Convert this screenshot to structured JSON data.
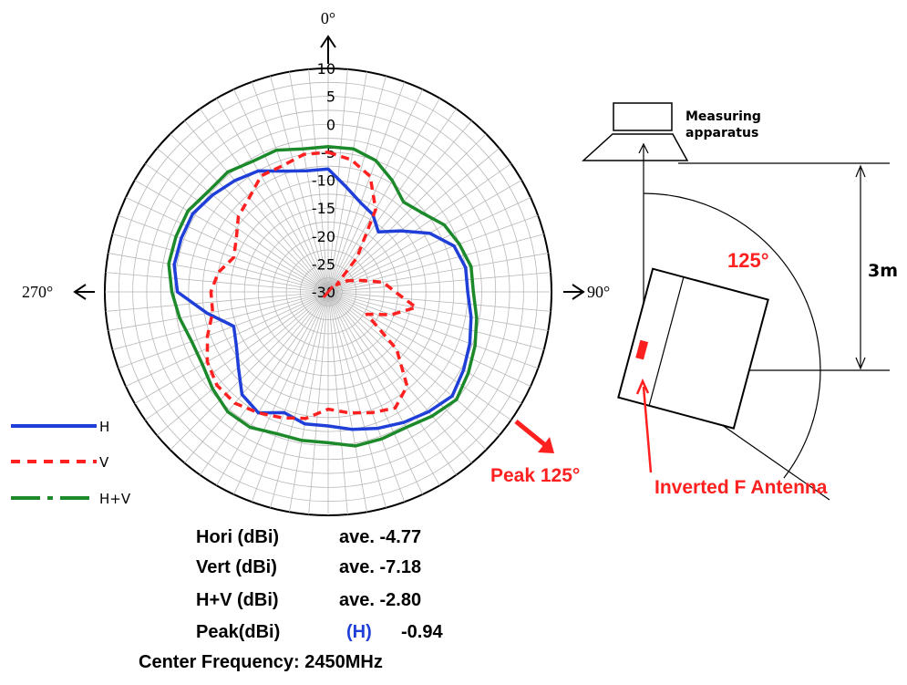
{
  "chart_data": {
    "type": "polar-line",
    "radial_ticks": [
      "10",
      "5",
      "0",
      "-5",
      "-10",
      "-15",
      "-20",
      "-25",
      "-30"
    ],
    "radial_range": [
      -30,
      10
    ],
    "angle_labels": {
      "top": "0°",
      "right": "90°",
      "left": "270°"
    },
    "grid": true,
    "legend": {
      "position": "bottom-left",
      "entries": [
        {
          "label": "H",
          "color": "#1f3fd8",
          "dash": "solid"
        },
        {
          "label": "V",
          "color": "#ff2020",
          "dash": "dashed"
        },
        {
          "label": "H+V",
          "color": "#1c8a2a",
          "dash": "dash-dot"
        }
      ]
    },
    "angle_units": "degrees",
    "series": [
      {
        "name": "H",
        "color": "#1f3fd8",
        "values": [
          {
            "angle": 0,
            "r": -8
          },
          {
            "angle": 10,
            "r": -11
          },
          {
            "angle": 20,
            "r": -13
          },
          {
            "angle": 30,
            "r": -14
          },
          {
            "angle": 40,
            "r": -16
          },
          {
            "angle": 50,
            "r": -13
          },
          {
            "angle": 60,
            "r": -9
          },
          {
            "angle": 70,
            "r": -6
          },
          {
            "angle": 80,
            "r": -5
          },
          {
            "angle": 90,
            "r": -5
          },
          {
            "angle": 100,
            "r": -4
          },
          {
            "angle": 110,
            "r": -3
          },
          {
            "angle": 120,
            "r": -2
          },
          {
            "angle": 130,
            "r": -1
          },
          {
            "angle": 140,
            "r": -2
          },
          {
            "angle": 150,
            "r": -3
          },
          {
            "angle": 160,
            "r": -4
          },
          {
            "angle": 170,
            "r": -5
          },
          {
            "angle": 180,
            "r": -6
          },
          {
            "angle": 190,
            "r": -6
          },
          {
            "angle": 200,
            "r": -7
          },
          {
            "angle": 210,
            "r": -5
          },
          {
            "angle": 220,
            "r": -6
          },
          {
            "angle": 230,
            "r": -9
          },
          {
            "angle": 240,
            "r": -11
          },
          {
            "angle": 250,
            "r": -12
          },
          {
            "angle": 260,
            "r": -8
          },
          {
            "angle": 270,
            "r": -3
          },
          {
            "angle": 280,
            "r": -2
          },
          {
            "angle": 290,
            "r": -2
          },
          {
            "angle": 300,
            "r": -2
          },
          {
            "angle": 310,
            "r": -3
          },
          {
            "angle": 320,
            "r": -4
          },
          {
            "angle": 330,
            "r": -5
          },
          {
            "angle": 340,
            "r": -7
          },
          {
            "angle": 350,
            "r": -8
          }
        ]
      },
      {
        "name": "V",
        "color": "#ff2020",
        "values": [
          {
            "angle": 0,
            "r": -5
          },
          {
            "angle": 10,
            "r": -6
          },
          {
            "angle": 20,
            "r": -8
          },
          {
            "angle": 30,
            "r": -13
          },
          {
            "angle": 40,
            "r": -22
          },
          {
            "angle": 50,
            "r": -28
          },
          {
            "angle": 60,
            "r": -26
          },
          {
            "angle": 70,
            "r": -24
          },
          {
            "angle": 80,
            "r": -20
          },
          {
            "angle": 90,
            "r": -18
          },
          {
            "angle": 100,
            "r": -14
          },
          {
            "angle": 110,
            "r": -18
          },
          {
            "angle": 120,
            "r": -22
          },
          {
            "angle": 130,
            "r": -14
          },
          {
            "angle": 140,
            "r": -8
          },
          {
            "angle": 150,
            "r": -6
          },
          {
            "angle": 160,
            "r": -7
          },
          {
            "angle": 170,
            "r": -8
          },
          {
            "angle": 180,
            "r": -9
          },
          {
            "angle": 190,
            "r": -7
          },
          {
            "angle": 200,
            "r": -6
          },
          {
            "angle": 210,
            "r": -5
          },
          {
            "angle": 220,
            "r": -4
          },
          {
            "angle": 230,
            "r": -4
          },
          {
            "angle": 240,
            "r": -5
          },
          {
            "angle": 250,
            "r": -7
          },
          {
            "angle": 260,
            "r": -9
          },
          {
            "angle": 270,
            "r": -9
          },
          {
            "angle": 280,
            "r": -10
          },
          {
            "angle": 290,
            "r": -12
          },
          {
            "angle": 300,
            "r": -11
          },
          {
            "angle": 310,
            "r": -9
          },
          {
            "angle": 320,
            "r": -8
          },
          {
            "angle": 330,
            "r": -6
          },
          {
            "angle": 340,
            "r": -6
          },
          {
            "angle": 350,
            "r": -5
          }
        ]
      },
      {
        "name": "H+V",
        "color": "#1c8a2a",
        "values": [
          {
            "angle": 0,
            "r": -4
          },
          {
            "angle": 10,
            "r": -4
          },
          {
            "angle": 20,
            "r": -5
          },
          {
            "angle": 30,
            "r": -7
          },
          {
            "angle": 40,
            "r": -9
          },
          {
            "angle": 50,
            "r": -8
          },
          {
            "angle": 60,
            "r": -6
          },
          {
            "angle": 70,
            "r": -5
          },
          {
            "angle": 80,
            "r": -4
          },
          {
            "angle": 90,
            "r": -4
          },
          {
            "angle": 100,
            "r": -3
          },
          {
            "angle": 110,
            "r": -2
          },
          {
            "angle": 120,
            "r": -1
          },
          {
            "angle": 130,
            "r": 0
          },
          {
            "angle": 140,
            "r": -1
          },
          {
            "angle": 150,
            "r": -2
          },
          {
            "angle": 160,
            "r": -2
          },
          {
            "angle": 170,
            "r": -2
          },
          {
            "angle": 180,
            "r": -3
          },
          {
            "angle": 190,
            "r": -3
          },
          {
            "angle": 200,
            "r": -3
          },
          {
            "angle": 210,
            "r": -2
          },
          {
            "angle": 220,
            "r": -2
          },
          {
            "angle": 230,
            "r": -3
          },
          {
            "angle": 240,
            "r": -4
          },
          {
            "angle": 250,
            "r": -4
          },
          {
            "angle": 260,
            "r": -3
          },
          {
            "angle": 270,
            "r": -2
          },
          {
            "angle": 280,
            "r": -1
          },
          {
            "angle": 290,
            "r": -1
          },
          {
            "angle": 300,
            "r": -1
          },
          {
            "angle": 310,
            "r": -2
          },
          {
            "angle": 320,
            "r": -2
          },
          {
            "angle": 330,
            "r": -3
          },
          {
            "angle": 340,
            "r": -3
          },
          {
            "angle": 350,
            "r": -4
          }
        ]
      }
    ],
    "annotations": [
      {
        "text": "Peak 125°",
        "angle": 125,
        "color": "#ff2020"
      }
    ]
  },
  "diagram": {
    "apparatus_label_line1": "Measuring",
    "apparatus_label_line2": "apparatus",
    "angle_label": "125°",
    "distance_label": "3m",
    "antenna_label": "Inverted F Antenna",
    "rotation_deg": 125
  },
  "stats": {
    "hori_label": "Hori (dBi)",
    "hori_value": "ave. -4.77",
    "vert_label": "Vert (dBi)",
    "vert_value": "ave. -7.18",
    "hv_label": "H+V (dBi)",
    "hv_value": "ave. -2.80",
    "peak_label": "Peak(dBi)",
    "peak_pol": "(H)",
    "peak_value": "-0.94",
    "freq_text": "Center Frequency: 2450MHz"
  },
  "colors": {
    "h": "#1f3fd8",
    "v": "#ff2020",
    "hv": "#1c8a2a",
    "annotation": "#ff2020"
  }
}
